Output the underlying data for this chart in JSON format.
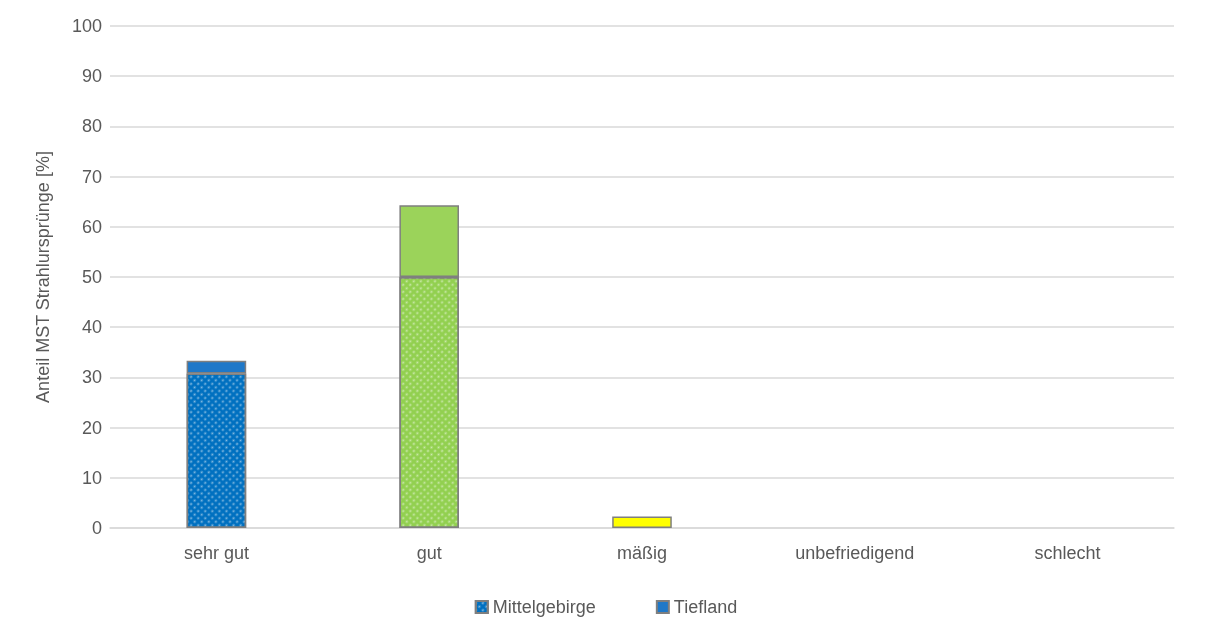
{
  "chart_data": {
    "type": "bar",
    "stacked": true,
    "ylabel": "Anteil MST Strahlursprünge [%]",
    "categories": [
      "sehr gut",
      "gut",
      "mäßig",
      "unbefriedigend",
      "schlecht"
    ],
    "series": [
      {
        "name": "Mittelgebirge",
        "color": "#0070c0",
        "colors": [
          "#0070c0",
          "#92d050",
          "#ffff00",
          "#ff9900",
          "#ff0000"
        ],
        "values": [
          30.8,
          50,
          0,
          0,
          0
        ]
      },
      {
        "name": "Tiefland",
        "color": "#1f78c8",
        "colors": [
          "#1f78c8",
          "#9bd35a",
          "#ffff00",
          "#ff9900",
          "#ff0000"
        ],
        "values": [
          2.5,
          14.3,
          2.3,
          0,
          0
        ]
      }
    ],
    "ylim": [
      0,
      100
    ],
    "yticks": [
      0,
      10,
      20,
      30,
      40,
      50,
      60,
      70,
      80,
      90,
      100
    ],
    "grid": "y",
    "legend": "bottom"
  }
}
